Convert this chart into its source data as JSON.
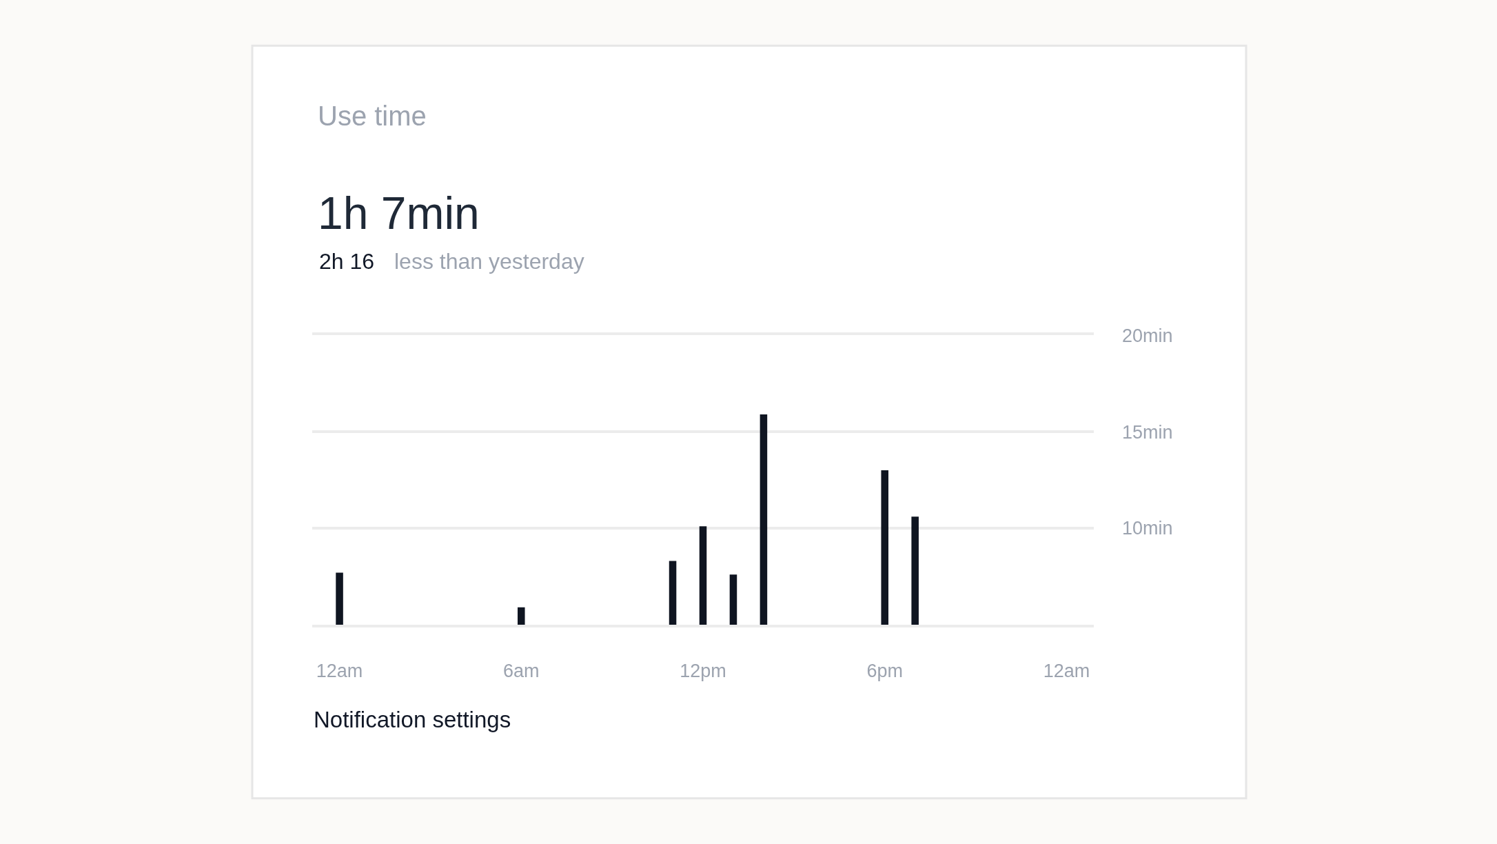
{
  "chart_data": {
    "type": "bar",
    "title": "Use time",
    "subtitle": "1h 7min",
    "annotations": [
      "2h 16",
      "less than yesterday",
      "Notification settings"
    ],
    "categories": [
      "12am",
      null,
      null,
      null,
      null,
      null,
      "6am",
      null,
      null,
      null,
      null,
      null,
      "12pm",
      null,
      null,
      null,
      null,
      null,
      "6pm",
      null,
      null,
      null,
      null,
      null,
      "12am"
    ],
    "values": [
      7.7,
      null,
      null,
      null,
      null,
      null,
      5.9,
      null,
      null,
      null,
      null,
      8.3,
      10.1,
      7.6,
      15.9,
      null,
      null,
      null,
      13.0,
      10.6,
      null,
      null,
      null,
      null,
      null
    ],
    "color": "#0f1521",
    "ylim": [
      5,
      20
    ],
    "yticks": [
      {
        "value": 5,
        "label": null
      },
      {
        "value": 10,
        "label": "10min"
      },
      {
        "value": 15,
        "label": "15min"
      },
      {
        "value": 20,
        "label": "20min"
      }
    ],
    "grid": "y"
  }
}
